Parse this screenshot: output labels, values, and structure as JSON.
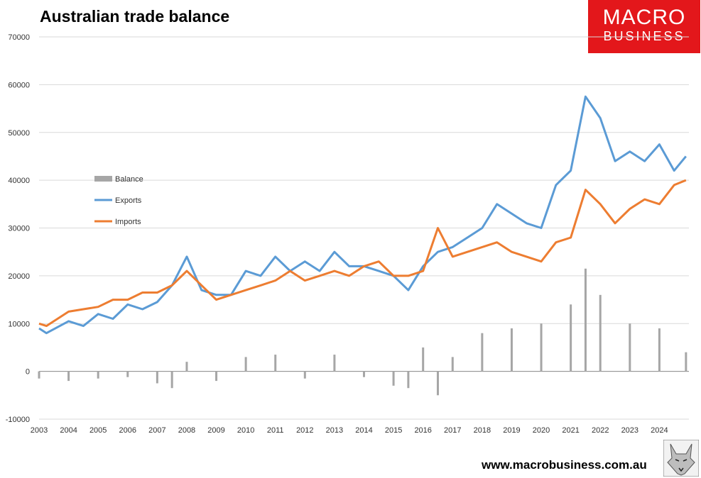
{
  "page": {
    "website": "www.macrobusiness.com.au",
    "logo_line1": "MACRO",
    "logo_line2": "BUSINESS",
    "logo_color": "#E3171B"
  },
  "chart_data": {
    "type": "line",
    "title": "Australian trade balance",
    "xlabel": "",
    "ylabel": "",
    "ylim": [
      -10000,
      70000
    ],
    "yticks": [
      -10000,
      0,
      10000,
      20000,
      30000,
      40000,
      50000,
      60000,
      70000
    ],
    "xlim": [
      2003.0,
      2025.0
    ],
    "xticks": [
      "2003",
      "2004",
      "2005",
      "2006",
      "2007",
      "2008",
      "2009",
      "2010",
      "2011",
      "2012",
      "2013",
      "2014",
      "2015",
      "2016",
      "2017",
      "2018",
      "2019",
      "2020",
      "2021",
      "2022",
      "2023",
      "2024"
    ],
    "grid": true,
    "legend": "left",
    "colors": {
      "balance": "#A6A6A6",
      "exports": "#5B9BD5",
      "imports": "#ED7D31"
    },
    "series": [
      {
        "name": "Balance",
        "type": "bar",
        "x": [
          "2003",
          "2004",
          "2005",
          "2006",
          "2007",
          "2007.5",
          "2008",
          "2009",
          "2010",
          "2011",
          "2012",
          "2013",
          "2014",
          "2015",
          "2015.5",
          "2016",
          "2016.5",
          "2017",
          "2018",
          "2019",
          "2020",
          "2021",
          "2021.5",
          "2022",
          "2023",
          "2024",
          "2024.9"
        ],
        "values": [
          -1500,
          -2000,
          -1500,
          -1200,
          -2500,
          -3500,
          2000,
          -2000,
          3000,
          3500,
          -1500,
          3500,
          -1200,
          -3000,
          -3500,
          5000,
          -5000,
          3000,
          8000,
          9000,
          10000,
          14000,
          21500,
          16000,
          10000,
          9000,
          4000
        ]
      },
      {
        "name": "Exports",
        "type": "line",
        "x": [
          "2003",
          "2003.25",
          "2004",
          "2004.5",
          "2005",
          "2005.5",
          "2006",
          "2006.5",
          "2007",
          "2007.5",
          "2008",
          "2008.5",
          "2009",
          "2009.5",
          "2010",
          "2010.5",
          "2011",
          "2011.5",
          "2012",
          "2012.5",
          "2013",
          "2013.5",
          "2014",
          "2014.5",
          "2015",
          "2015.5",
          "2016",
          "2016.5",
          "2017",
          "2017.5",
          "2018",
          "2018.5",
          "2019",
          "2019.5",
          "2020",
          "2020.5",
          "2021",
          "2021.5",
          "2022",
          "2022.5",
          "2023",
          "2023.5",
          "2024",
          "2024.5",
          "2024.9"
        ],
        "values": [
          9000,
          8000,
          10500,
          9500,
          12000,
          11000,
          14000,
          13000,
          14500,
          18000,
          24000,
          17000,
          16000,
          16000,
          21000,
          20000,
          24000,
          21000,
          23000,
          21000,
          25000,
          22000,
          22000,
          21000,
          20000,
          17000,
          22000,
          25000,
          26000,
          28000,
          30000,
          35000,
          33000,
          31000,
          30000,
          39000,
          42000,
          57500,
          53000,
          44000,
          46000,
          44000,
          47500,
          42000,
          45000
        ]
      },
      {
        "name": "Imports",
        "type": "line",
        "x": [
          "2003",
          "2003.25",
          "2004",
          "2004.5",
          "2005",
          "2005.5",
          "2006",
          "2006.5",
          "2007",
          "2007.5",
          "2008",
          "2008.5",
          "2009",
          "2009.5",
          "2010",
          "2010.5",
          "2011",
          "2011.5",
          "2012",
          "2012.5",
          "2013",
          "2013.5",
          "2014",
          "2014.5",
          "2015",
          "2015.5",
          "2016",
          "2016.5",
          "2017",
          "2017.5",
          "2018",
          "2018.5",
          "2019",
          "2019.5",
          "2020",
          "2020.5",
          "2021",
          "2021.5",
          "2022",
          "2022.5",
          "2023",
          "2023.5",
          "2024",
          "2024.5",
          "2024.9"
        ],
        "values": [
          10000,
          9500,
          12500,
          13000,
          13500,
          15000,
          15000,
          16500,
          16500,
          18000,
          21000,
          18000,
          15000,
          16000,
          17000,
          18000,
          19000,
          21000,
          19000,
          20000,
          21000,
          20000,
          22000,
          23000,
          20000,
          20000,
          21000,
          30000,
          24000,
          25000,
          26000,
          27000,
          25000,
          24000,
          23000,
          27000,
          28000,
          38000,
          35000,
          31000,
          34000,
          36000,
          35000,
          39000,
          40000
        ]
      }
    ]
  }
}
